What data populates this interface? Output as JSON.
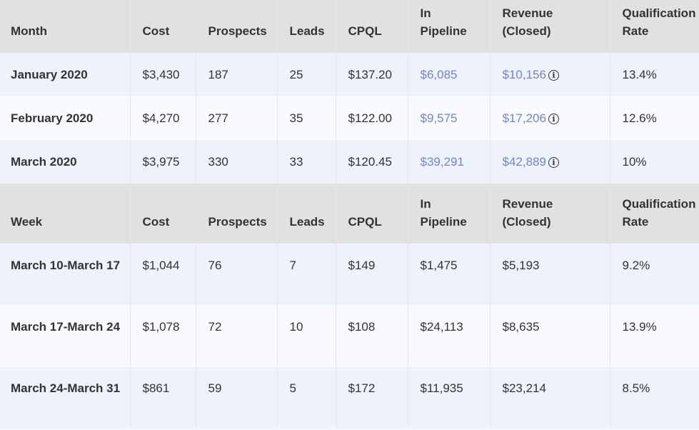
{
  "monthly": {
    "headers": [
      "Month",
      "Cost",
      "Prospects",
      "Leads",
      "CPQL",
      "In\nPipeline",
      "Revenue\n(Closed)",
      "Qualification\nRate"
    ],
    "rows": [
      {
        "label": "January 2020",
        "cost": "$3,430",
        "prospects": "187",
        "leads": "25",
        "cpql": "$137.20",
        "pipeline": "$6,085",
        "revenue": "$10,156",
        "rate": "13.4%"
      },
      {
        "label": "February 2020",
        "cost": "$4,270",
        "prospects": "277",
        "leads": "35",
        "cpql": "$122.00",
        "pipeline": "$9,575",
        "revenue": "$17,206",
        "rate": "12.6%"
      },
      {
        "label": "March 2020",
        "cost": "$3,975",
        "prospects": "330",
        "leads": "33",
        "cpql": "$120.45",
        "pipeline": "$39,291",
        "revenue": "$42,889",
        "rate": "10%"
      }
    ]
  },
  "weekly": {
    "headers": [
      "Week",
      "Cost",
      "Prospects",
      "Leads",
      "CPQL",
      "In\nPipeline",
      "Revenue\n(Closed)",
      "Qualification\nRate"
    ],
    "rows": [
      {
        "label": "March 10-March 17",
        "cost": "$1,044",
        "prospects": "76",
        "leads": "7",
        "cpql": "$149",
        "pipeline": "$1,475",
        "revenue": "$5,193",
        "rate": "9.2%"
      },
      {
        "label": "March 17-March 24",
        "cost": "$1,078",
        "prospects": "72",
        "leads": "10",
        "cpql": "$108",
        "pipeline": "$24,113",
        "revenue": "$8,635",
        "rate": "13.9%"
      },
      {
        "label": "March 24-March 31",
        "cost": "$861",
        "prospects": "59",
        "leads": "5",
        "cpql": "$172",
        "pipeline": "$11,935",
        "revenue": "$23,214",
        "rate": "8.5%"
      }
    ]
  },
  "icons": {
    "revenue_info": "info-icon"
  },
  "colors": {
    "link": "#7384d8",
    "header_bg": "#e1e1e1",
    "row_a": "#eef2fb",
    "row_b": "#f8fafe"
  }
}
